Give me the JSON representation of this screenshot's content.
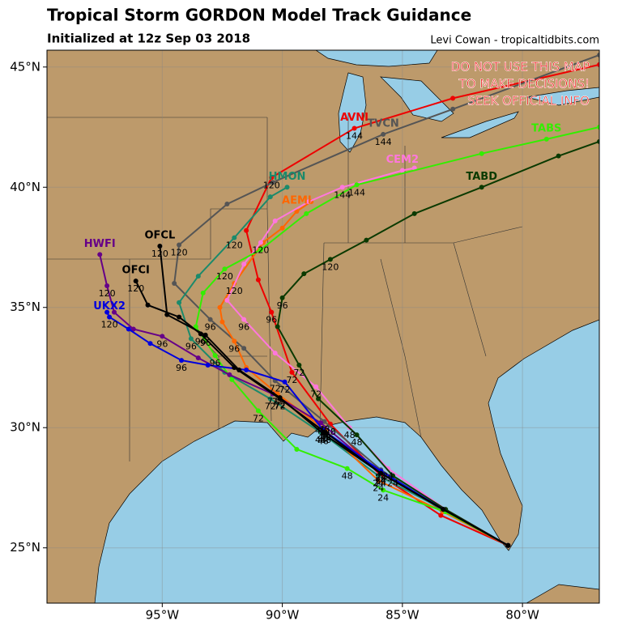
{
  "header": {
    "title": "Tropical Storm GORDON Model Track Guidance",
    "subtitle": "Initialized at 12z Sep 03 2018",
    "credit": "Levi Cowan - tropicaltidbits.com"
  },
  "disclaimer": [
    "DO NOT USE THIS MAP",
    "TO MAKE DECISIONS!",
    "SEEK OFFICIAL INFO"
  ],
  "map": {
    "lonlim": [
      -99.8,
      -76.8
    ],
    "latlim": [
      22.7,
      45.7
    ],
    "lon_ticks": [
      {
        "value": -95,
        "label": "95°W"
      },
      {
        "value": -90,
        "label": "90°W"
      },
      {
        "value": -85,
        "label": "85°W"
      },
      {
        "value": -80,
        "label": "80°W"
      }
    ],
    "lat_ticks": [
      {
        "value": 25,
        "label": "25°N"
      },
      {
        "value": 30,
        "label": "30°N"
      },
      {
        "value": 35,
        "label": "35°N"
      },
      {
        "value": 40,
        "label": "40°N"
      },
      {
        "value": 45,
        "label": "45°N"
      }
    ],
    "grid": true
  },
  "tracks": [
    {
      "name": "AVNI",
      "color": "#ee0000",
      "lon": [
        -80.6,
        -83.4,
        -85.9,
        -88.0,
        -89.6,
        -90.45,
        -91.0,
        -91.5,
        -90.45,
        -87.0,
        -82.9,
        -76.8
      ],
      "lat": [
        25.1,
        26.35,
        28.0,
        30.15,
        32.3,
        34.8,
        36.15,
        38.2,
        40.4,
        42.45,
        43.7,
        45.1
      ],
      "hours": [
        null,
        null,
        24,
        48,
        72,
        96,
        null,
        null,
        120,
        144,
        null,
        null
      ]
    },
    {
      "name": "TVCN",
      "color": "#555555",
      "lon": [
        -80.6,
        -83.35,
        -85.9,
        -88.25,
        -90.3,
        -91.6,
        -93.0,
        -94.5,
        -94.3,
        -92.3,
        -90.4,
        -85.8,
        -82.9,
        -76.8
      ],
      "lat": [
        25.1,
        26.55,
        28.25,
        30.25,
        31.95,
        33.3,
        34.5,
        36.0,
        37.6,
        39.3,
        40.2,
        42.2,
        43.25,
        45.5
      ],
      "hours": [
        null,
        null,
        24,
        48,
        72,
        null,
        96,
        null,
        120,
        null,
        null,
        144,
        null,
        null
      ]
    },
    {
      "name": "HMON",
      "color": "#1b8a6b",
      "lon": [
        -80.6,
        -83.3,
        -86.0,
        -88.4,
        -90.5,
        -92.4,
        -93.8,
        -94.3,
        -93.5,
        -92.0,
        -90.5,
        -89.8
      ],
      "lat": [
        25.1,
        26.6,
        28.0,
        29.8,
        31.2,
        32.3,
        33.7,
        35.2,
        36.3,
        37.9,
        39.6,
        40.0
      ],
      "hours": [
        null,
        null,
        24,
        48,
        72,
        null,
        96,
        null,
        null,
        120,
        null,
        null
      ]
    },
    {
      "name": "AEMI",
      "color": "#ff6600",
      "lon": [
        -80.6,
        -83.3,
        -86.0,
        -88.2,
        -90.2,
        -91.5,
        -92.0,
        -92.5,
        -92.6,
        -92.0,
        -90.8,
        -90.0,
        -89.4,
        -88.8
      ],
      "lat": [
        25.1,
        26.5,
        27.8,
        29.9,
        31.4,
        32.5,
        33.6,
        34.4,
        35.0,
        36.0,
        37.7,
        38.3,
        39.0,
        39.4
      ],
      "hours": [
        null,
        null,
        24,
        48,
        72,
        null,
        96,
        null,
        null,
        120,
        null,
        null,
        null,
        null
      ]
    },
    {
      "name": "CEM2",
      "color": "#ff77dd",
      "lon": [
        -80.6,
        -83.2,
        -85.6,
        -87.2,
        -88.6,
        -90.3,
        -91.6,
        -92.3,
        -91.6,
        -90.9,
        -90.3,
        -88.9,
        -87.5,
        -85.0,
        -84.5
      ],
      "lat": [
        25.1,
        26.6,
        28.3,
        30.0,
        31.7,
        33.1,
        34.5,
        35.3,
        36.8,
        37.7,
        38.6,
        39.4,
        40.0,
        40.7,
        40.8
      ],
      "hours": [
        null,
        null,
        24,
        48,
        72,
        null,
        96,
        null,
        null,
        120,
        null,
        null,
        144,
        null,
        null
      ]
    },
    {
      "name": "TABS",
      "color": "#33ee00",
      "lon": [
        -80.6,
        -83.2,
        -85.8,
        -87.3,
        -89.4,
        -91.0,
        -92.1,
        -92.8,
        -93.6,
        -93.3,
        -92.4,
        -90.9,
        -89.0,
        -86.9,
        -81.7,
        -79.0,
        -76.8
      ],
      "lat": [
        25.1,
        26.5,
        27.4,
        28.3,
        29.1,
        30.7,
        32.0,
        33.0,
        34.2,
        35.6,
        36.6,
        37.4,
        38.9,
        40.1,
        41.4,
        42.0,
        42.5
      ],
      "hours": [
        null,
        null,
        24,
        48,
        null,
        72,
        null,
        96,
        null,
        null,
        120,
        null,
        null,
        144,
        null,
        null,
        null
      ]
    },
    {
      "name": "TABD",
      "color": "#0a3a00",
      "lon": [
        -80.6,
        -83.2,
        -85.4,
        -86.9,
        -88.5,
        -89.3,
        -90.2,
        -90.0,
        -89.1,
        -88.0,
        -86.5,
        -84.5,
        -81.7,
        -78.5,
        -76.8
      ],
      "lat": [
        25.1,
        26.6,
        28.0,
        29.7,
        31.2,
        32.6,
        34.2,
        35.4,
        36.4,
        37.0,
        37.8,
        38.9,
        40.0,
        41.3,
        41.9
      ],
      "hours": [
        null,
        null,
        24,
        48,
        null,
        72,
        null,
        96,
        null,
        120,
        null,
        null,
        null,
        null,
        null
      ]
    },
    {
      "name": "HWFI",
      "color": "#660088",
      "lon": [
        -80.6,
        -83.3,
        -85.9,
        -88.4,
        -90.4,
        -92.2,
        -93.5,
        -95.0,
        -96.2,
        -97.0,
        -97.3,
        -97.6
      ],
      "lat": [
        25.1,
        26.6,
        28.1,
        30.2,
        31.4,
        32.2,
        32.9,
        33.8,
        34.1,
        34.8,
        35.9,
        37.2
      ],
      "hours": [
        null,
        null,
        24,
        48,
        72,
        null,
        null,
        96,
        null,
        null,
        120,
        null
      ]
    },
    {
      "name": "UKX2",
      "color": "#0000dd",
      "lon": [
        -80.6,
        -83.3,
        -85.9,
        -88.3,
        -89.9,
        -91.5,
        -93.1,
        -94.2,
        -95.5,
        -96.4,
        -97.2,
        -97.3
      ],
      "lat": [
        25.1,
        26.6,
        28.2,
        29.9,
        31.9,
        32.4,
        32.6,
        32.8,
        33.5,
        34.1,
        34.6,
        34.8
      ],
      "hours": [
        null,
        null,
        24,
        48,
        72,
        null,
        null,
        96,
        null,
        null,
        120,
        null
      ]
    },
    {
      "name": "OFCL",
      "color": "#000000",
      "lon": [
        -80.6,
        -83.3,
        -85.9,
        -88.3,
        -90.1,
        -91.8,
        -93.2,
        -94.8,
        -95.1
      ],
      "lat": [
        25.1,
        26.6,
        28.1,
        29.75,
        31.25,
        32.4,
        33.85,
        34.7,
        37.55
      ],
      "hours": [
        null,
        null,
        24,
        48,
        72,
        null,
        96,
        null,
        120
      ]
    },
    {
      "name": "OFCI",
      "color": "#000000",
      "lon": [
        -80.6,
        -83.3,
        -85.9,
        -88.2,
        -90.1,
        -92.0,
        -93.4,
        -94.3,
        -95.6,
        -96.1
      ],
      "lat": [
        25.1,
        26.6,
        28.1,
        29.8,
        31.2,
        32.5,
        33.9,
        34.6,
        35.1,
        36.1
      ],
      "hours": [
        null,
        null,
        24,
        48,
        72,
        null,
        96,
        null,
        null,
        120
      ]
    }
  ]
}
